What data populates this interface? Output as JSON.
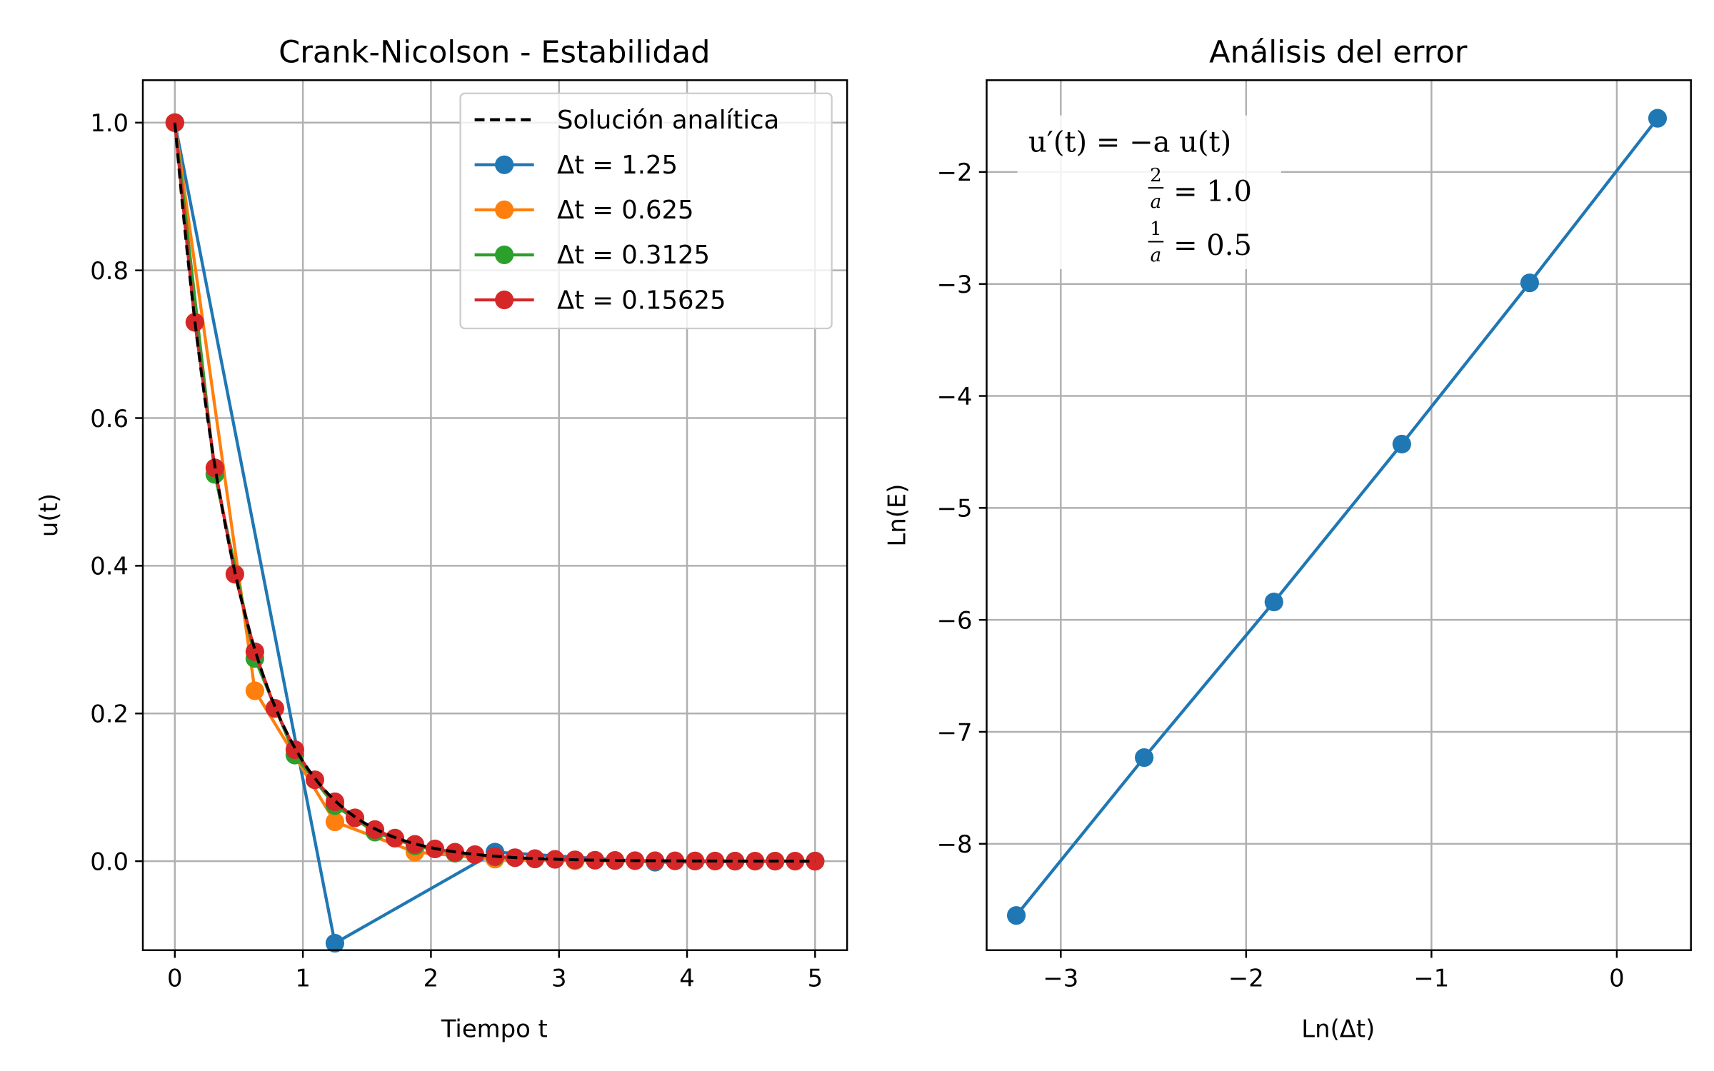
{
  "colors": {
    "blue": "#1f77b4",
    "orange": "#ff7f0e",
    "green": "#2ca02c",
    "red": "#d62728",
    "analytic": "#000000"
  },
  "chart_data": [
    {
      "type": "line",
      "title": "Crank-Nicolson - Estabilidad",
      "xlabel": "Tiempo t",
      "ylabel": "u(t)",
      "xlim": [
        -0.25,
        5.25
      ],
      "ylim": [
        -0.1205,
        1.0575
      ],
      "xticks": [
        0,
        1,
        2,
        3,
        4,
        5
      ],
      "yticks": [
        0.0,
        0.2,
        0.4,
        0.6,
        0.8,
        1.0
      ],
      "xtick_labels": [
        "0",
        "1",
        "2",
        "3",
        "4",
        "5"
      ],
      "ytick_labels": [
        "0.0",
        "0.2",
        "0.4",
        "0.6",
        "0.8",
        "1.0"
      ],
      "grid": true,
      "legend_position": "top-right",
      "analytic": {
        "name": "Solución analítica",
        "rate": 2,
        "t_range": [
          0,
          5
        ]
      },
      "series": [
        {
          "name": "Δt = 1.25",
          "dt": 1.25,
          "x": [
            0,
            1.25,
            2.5,
            3.75,
            5.0
          ],
          "y": [
            1.0,
            -0.1111,
            0.0123,
            -0.00137,
            0.00015
          ]
        },
        {
          "name": "Δt = 0.625",
          "dt": 0.625,
          "x": [
            0,
            0.625,
            1.25,
            1.875,
            2.5,
            3.125,
            3.75,
            4.375,
            5.0
          ],
          "y": [
            1.0,
            0.2308,
            0.0533,
            0.0123,
            0.0028,
            0.00065,
            0.00015,
            3e-05,
            1e-05
          ]
        },
        {
          "name": "Δt = 0.3125",
          "dt": 0.3125,
          "x": [
            0,
            0.3125,
            0.625,
            0.9375,
            1.25,
            1.5625,
            1.875,
            2.1875,
            2.5,
            2.8125,
            3.125,
            3.4375,
            3.75,
            4.0625,
            4.375,
            4.6875,
            5.0
          ],
          "y": [
            1.0,
            0.5238,
            0.2744,
            0.1437,
            0.0753,
            0.0394,
            0.0207,
            0.0108,
            0.0057,
            0.003,
            0.0016,
            0.0008,
            0.0004,
            0.0002,
            0.0001,
            6e-05,
            3e-05
          ]
        },
        {
          "name": "Δt = 0.15625",
          "dt": 0.15625,
          "x": [
            0,
            0.15625,
            0.3125,
            0.46875,
            0.625,
            0.78125,
            0.9375,
            1.09375,
            1.25,
            1.40625,
            1.5625,
            1.71875,
            1.875,
            2.03125,
            2.1875,
            2.34375,
            2.5,
            2.65625,
            2.8125,
            2.96875,
            3.125,
            3.28125,
            3.4375,
            3.59375,
            3.75,
            3.90625,
            4.0625,
            4.21875,
            4.375,
            4.53125,
            4.6875,
            4.84375,
            5.0
          ],
          "y": [
            1.0,
            0.7297,
            0.5325,
            0.3886,
            0.2836,
            0.2069,
            0.151,
            0.1102,
            0.0804,
            0.0587,
            0.0428,
            0.0312,
            0.0228,
            0.0166,
            0.0121,
            0.0089,
            0.0065,
            0.0047,
            0.0034,
            0.0025,
            0.0018,
            0.0013,
            0.001,
            0.0007,
            0.0005,
            0.0004,
            0.0003,
            0.0002,
            0.0001,
            0.0001,
            0.0001,
            0.0001,
            0.0
          ]
        }
      ]
    },
    {
      "type": "line",
      "title": "Análisis del error",
      "xlabel": "Ln(Δt)",
      "ylabel": "Ln(E)",
      "xlim": [
        -3.4,
        0.4
      ],
      "ylim": [
        -8.95,
        -1.18
      ],
      "xticks": [
        -3,
        -2,
        -1,
        0
      ],
      "yticks": [
        -8,
        -7,
        -6,
        -5,
        -4,
        -3,
        -2
      ],
      "xtick_labels": [
        "−3",
        "−2",
        "−1",
        "0"
      ],
      "ytick_labels": [
        "−8",
        "−7",
        "−6",
        "−5",
        "−4",
        "−3",
        "−2"
      ],
      "grid": true,
      "series": [
        {
          "name": "",
          "x": [
            -3.24,
            -2.55,
            -1.85,
            -1.16,
            -0.47,
            0.22
          ],
          "y": [
            -8.64,
            -7.23,
            -5.84,
            -4.43,
            -2.99,
            -1.52
          ]
        }
      ],
      "annotation": {
        "equation": "u′(t) = −a u(t)",
        "line2_num": "2",
        "line2_den": "a",
        "line2_value": "= 1.0",
        "line3_num": "1",
        "line3_den": "a",
        "line3_value": "= 0.5"
      }
    }
  ]
}
